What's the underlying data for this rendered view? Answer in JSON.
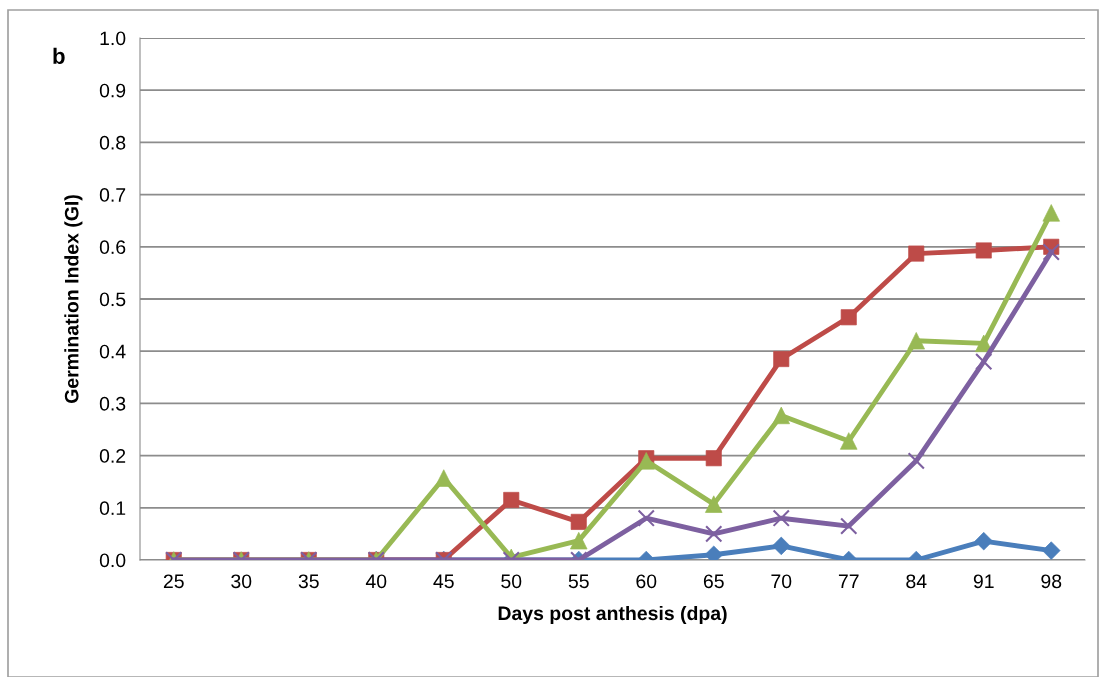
{
  "chart_data": {
    "type": "line",
    "xlabel": "Days post anthesis (dpa)",
    "ylabel": "Germination Index (GI)",
    "annotations": [
      "b"
    ],
    "categories": [
      "25",
      "30",
      "35",
      "40",
      "45",
      "50",
      "55",
      "60",
      "65",
      "70",
      "77",
      "84",
      "91",
      "98"
    ],
    "series": [
      {
        "color": "#4a7ebb",
        "marker": "diamond",
        "values": [
          null,
          null,
          null,
          0,
          0,
          0,
          0,
          0,
          0.01,
          0.027,
          0,
          0,
          0.036,
          0.018
        ]
      },
      {
        "color": "#be4b48",
        "marker": "square",
        "values": [
          0,
          0,
          0,
          0,
          0,
          0.115,
          0.073,
          0.195,
          0.195,
          0.385,
          0.465,
          0.587,
          0.593,
          0.6
        ]
      },
      {
        "color": "#98b954",
        "marker": "triangle",
        "values": [
          0,
          0,
          0,
          0,
          0.157,
          0.005,
          0.037,
          0.19,
          0.107,
          0.277,
          0.228,
          0.42,
          0.415,
          0.665
        ]
      },
      {
        "color": "#7d60a0",
        "marker": "cross",
        "values": [
          0,
          0,
          0,
          0,
          0,
          0,
          0,
          0.08,
          0.05,
          0.08,
          0.065,
          0.19,
          0.38,
          0.59
        ]
      }
    ],
    "ylim": [
      0,
      1.0
    ],
    "yticks": [
      {
        "value": 0,
        "label": "0.0"
      },
      0.1,
      0.2,
      0.3,
      0.4,
      0.5,
      0.6,
      0.7,
      0.8,
      0.9,
      {
        "value": 1.0,
        "label": "1.0"
      }
    ],
    "grid": "y",
    "line_style": "solid",
    "legend": false
  }
}
